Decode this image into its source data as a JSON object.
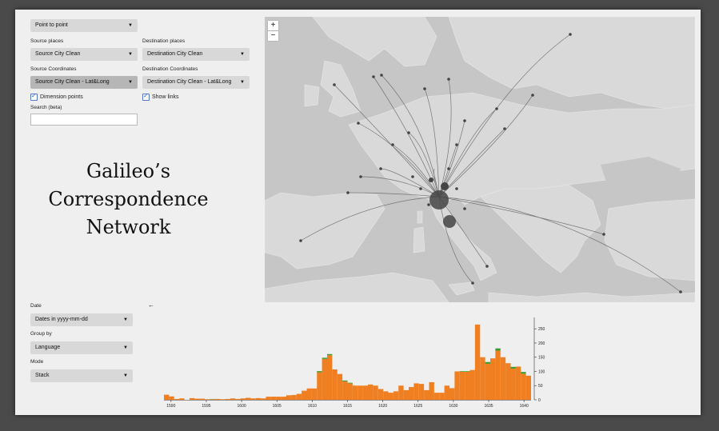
{
  "controls": {
    "mode_select": "Point to point",
    "source_places_label": "Source places",
    "source_places_value": "Source City Clean",
    "destination_places_label": "Destination places",
    "destination_places_value": "Destination City Clean",
    "source_coords_label": "Source Coordinates",
    "source_coords_value": "Source City Clean - Lat&Long",
    "destination_coords_label": "Destination Coordinates",
    "destination_coords_value": "Destination City Clean - Lat&Long",
    "dimension_points_label": "Dimension points",
    "show_links_label": "Show links",
    "search_label": "Search (beta)",
    "search_value": ""
  },
  "title_lines": [
    "Galileo’s",
    "Correspondence",
    "Network"
  ],
  "map": {
    "zoom_in": "+",
    "zoom_out": "−"
  },
  "bottom": {
    "date_label": "Date",
    "date_value": "Dates in yyyy-mm-dd",
    "group_label": "Group by",
    "group_value": "Language",
    "mode_label": "Mode",
    "mode_value": "Stack",
    "back_arrow": "←"
  },
  "colors": {
    "bar_primary": "#f07f22",
    "bar_secondary": "#3a9a2a",
    "map_land": "#d9d9d9",
    "map_sea": "#c6c6c6"
  },
  "chart_data": {
    "type": "bar",
    "x_start": 1589,
    "x_end": 1641,
    "bin_years": 0.5,
    "values": [
      18,
      12,
      3,
      5,
      0,
      6,
      4,
      4,
      2,
      2,
      3,
      2,
      3,
      5,
      3,
      5,
      7,
      5,
      6,
      5,
      11,
      11,
      11,
      11,
      16,
      17,
      21,
      32,
      40,
      40,
      97,
      144,
      157,
      107,
      91,
      65,
      58,
      50,
      50,
      50,
      54,
      50,
      38,
      30,
      25,
      30,
      50,
      34,
      45,
      58,
      56,
      34,
      62,
      25,
      25,
      50,
      41,
      100,
      99,
      99,
      105,
      265,
      150,
      127,
      146,
      173,
      150,
      129,
      110,
      117,
      92,
      85
    ],
    "secondary_values": [
      0,
      0,
      0,
      0,
      0,
      0,
      0,
      0,
      0,
      1,
      0,
      0,
      0,
      0,
      0,
      0,
      0,
      0,
      0,
      0,
      0,
      0,
      0,
      0,
      0,
      0,
      0,
      0,
      0,
      0,
      4,
      4,
      4,
      0,
      0,
      3,
      2,
      0,
      0,
      0,
      0,
      0,
      0,
      0,
      0,
      0,
      0,
      0,
      0,
      0,
      0,
      0,
      0,
      0,
      0,
      0,
      0,
      0,
      2,
      2,
      0,
      0,
      0,
      6,
      0,
      8,
      0,
      0,
      6,
      0,
      6,
      0
    ],
    "x_ticks": [
      "1590",
      "1595",
      "1600",
      "1605",
      "1610",
      "1615",
      "1620",
      "1625",
      "1630",
      "1635",
      "1640"
    ],
    "y_ticks": [
      0,
      50,
      100,
      150,
      200,
      250
    ],
    "ylim": [
      0,
      290
    ]
  }
}
